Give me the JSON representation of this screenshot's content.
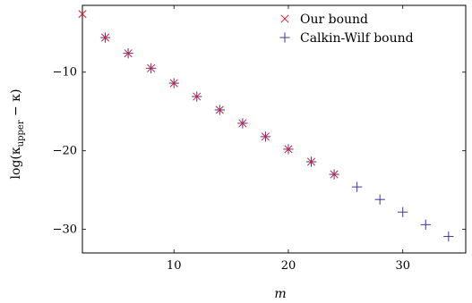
{
  "chart_data": {
    "type": "scatter",
    "xlabel": "m",
    "ylabel_main": "log(κ",
    "ylabel_sub": "upper",
    "ylabel_rest": " − κ)",
    "xlim": [
      2,
      35.5
    ],
    "ylim": [
      -33,
      -1.5
    ],
    "x_ticks": [
      10,
      20,
      30
    ],
    "y_ticks": [
      -10,
      -20,
      -30
    ],
    "x_tick_labels": [
      "10",
      "20",
      "30"
    ],
    "y_tick_labels": [
      "−10",
      "−20",
      "−30"
    ],
    "legend_position": "top-right",
    "series": [
      {
        "name": "Our bound",
        "marker": "x",
        "color": "#e8192c",
        "x": [
          2,
          4,
          6,
          8,
          10,
          12,
          14,
          16,
          18,
          20,
          22,
          24
        ],
        "y": [
          -2.6,
          -5.6,
          -7.6,
          -9.5,
          -11.4,
          -13.1,
          -14.8,
          -16.5,
          -18.2,
          -19.8,
          -21.4,
          -23.0
        ]
      },
      {
        "name": "Calkin-Wilf bound",
        "marker": "+",
        "color": "#3a3a9e",
        "x": [
          4,
          6,
          8,
          10,
          12,
          14,
          16,
          18,
          20,
          22,
          24,
          26,
          28,
          30,
          32,
          34
        ],
        "y": [
          -5.6,
          -7.6,
          -9.5,
          -11.4,
          -13.1,
          -14.8,
          -16.5,
          -18.2,
          -19.8,
          -21.4,
          -23.0,
          -24.6,
          -26.2,
          -27.8,
          -29.4,
          -30.9
        ]
      }
    ]
  }
}
